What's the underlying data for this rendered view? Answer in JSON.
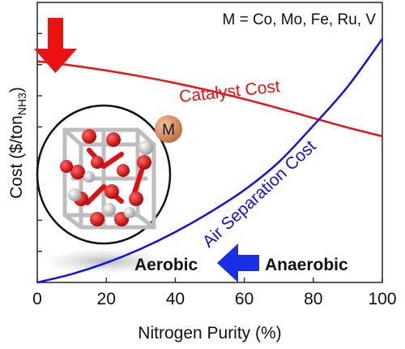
{
  "chart_data": {
    "type": "line",
    "xlabel": "Nitrogen Purity (%)",
    "ylabel": "Cost ($/ton",
    "ylabel_sub": "NH3",
    "ylabel_close": ")",
    "xlim": [
      0,
      100
    ],
    "ylim": [
      0,
      1
    ],
    "xticks": [
      0,
      20,
      40,
      60,
      80,
      100
    ],
    "y_tick_labels_shown": false,
    "grid": false,
    "metals_label": "M = Co, Mo, Fe, Ru, V",
    "metal_marker_label": "M",
    "series": [
      {
        "name": "Catalyst Cost",
        "color": "#ee1111",
        "x": [
          0,
          10,
          20,
          30,
          40,
          50,
          60,
          70,
          80,
          90,
          100
        ],
        "y": [
          0.79,
          0.775,
          0.757,
          0.736,
          0.712,
          0.685,
          0.655,
          0.622,
          0.587,
          0.553,
          0.522
        ]
      },
      {
        "name": "Air Separation Cost",
        "color": "#1111ee",
        "x": [
          0,
          10,
          20,
          30,
          40,
          50,
          60,
          70,
          80,
          90,
          100
        ],
        "y": [
          0.0,
          0.03,
          0.07,
          0.12,
          0.18,
          0.25,
          0.33,
          0.43,
          0.56,
          0.7,
          0.87
        ]
      }
    ],
    "annotations": {
      "aerobic": "Aerobic",
      "anaerobic": "Anaerobic"
    },
    "colors": {
      "red_arrow": "#ee1111",
      "blue_arrow": "#1a2ee6",
      "metal_sphere": "#d4875a"
    }
  }
}
